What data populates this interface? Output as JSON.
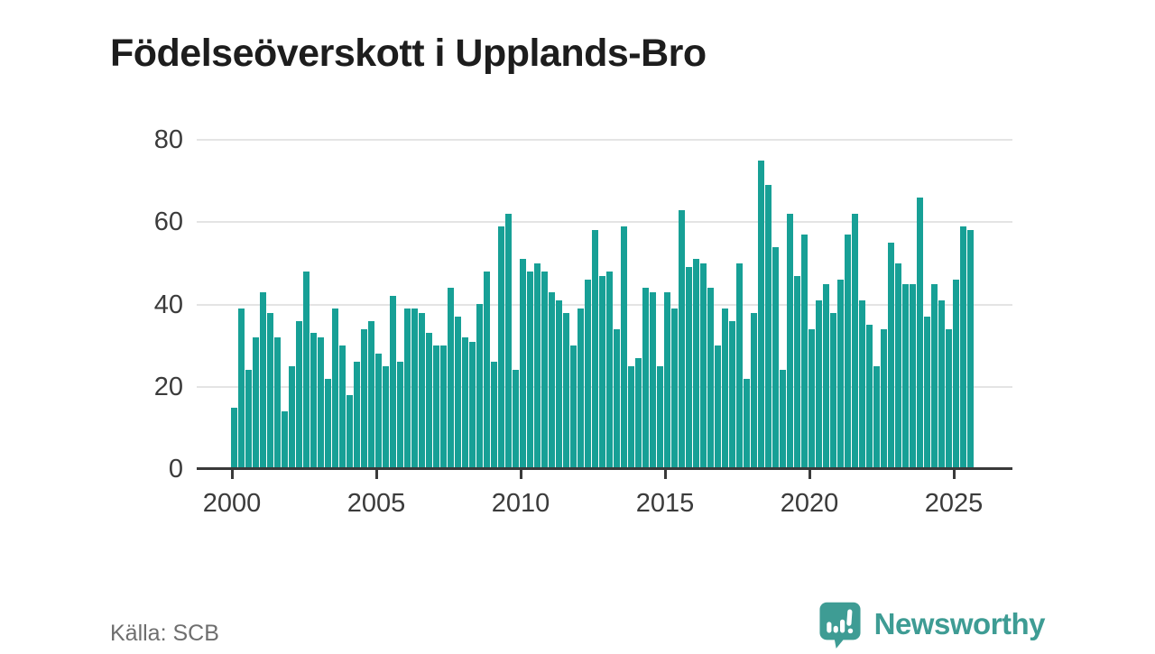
{
  "title": "Födelseöverskott i Upplands-Bro",
  "source": {
    "label": "Källa: SCB"
  },
  "branding": {
    "name": "Newsworthy",
    "logo_icon": "speech-bubble-bar-chart-exclamation"
  },
  "colors": {
    "bar": "#17a096",
    "brand": "#3e9c94",
    "title_text": "#1d1d1d",
    "axis_text": "#3b3b3b",
    "grid": "#e4e4e4",
    "axis_line": "#3a3a3a",
    "source_text": "#6e6e6e"
  },
  "chart_data": {
    "type": "bar",
    "title": "Födelseöverskott i Upplands-Bro",
    "xlabel": "",
    "ylabel": "",
    "unit": "persons per quarter",
    "frequency": "quarterly",
    "start_period": "2000-Q1",
    "end_period": "2025-Q3",
    "start_year": 2000,
    "values": [
      15,
      39,
      24,
      32,
      43,
      38,
      32,
      14,
      25,
      36,
      48,
      33,
      32,
      22,
      39,
      30,
      18,
      26,
      34,
      36,
      28,
      25,
      42,
      26,
      39,
      39,
      38,
      33,
      30,
      30,
      44,
      37,
      32,
      31,
      40,
      48,
      26,
      59,
      62,
      24,
      51,
      48,
      50,
      48,
      43,
      41,
      38,
      30,
      39,
      46,
      58,
      47,
      48,
      34,
      59,
      25,
      27,
      44,
      43,
      25,
      43,
      39,
      63,
      49,
      51,
      50,
      44,
      30,
      39,
      36,
      50,
      22,
      38,
      75,
      69,
      54,
      24,
      62,
      47,
      57,
      34,
      41,
      45,
      38,
      46,
      57,
      62,
      41,
      35,
      25,
      34,
      55,
      50,
      45,
      45,
      66,
      37,
      45,
      41,
      34,
      46,
      59,
      58
    ],
    "xticks": [
      2000,
      2005,
      2010,
      2015,
      2020,
      2025
    ],
    "yticks": [
      0,
      20,
      40,
      60,
      80
    ],
    "ylim": [
      0,
      80
    ],
    "grid": "horizontal",
    "legend": "none"
  }
}
